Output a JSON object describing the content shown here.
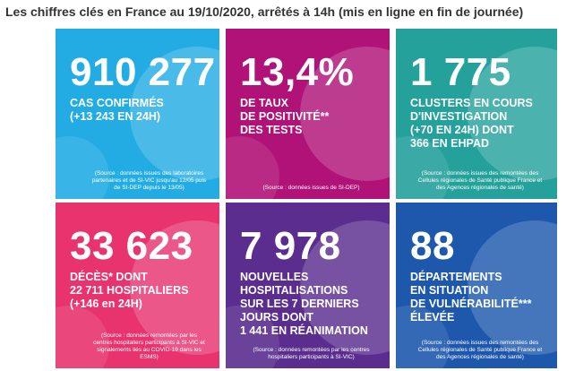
{
  "header": {
    "title": "Les chiffres clés en France au 19/10/2020, arrêtés à 14h (mis en ligne en fin de journée)"
  },
  "tiles": [
    {
      "number": "910 277",
      "lines": [
        "CAS CONFIRMÉS",
        "(+13 243 EN 24H)"
      ],
      "source": "(Source : données issues des laboratoires partenaires et de SI-VIC jusqu'au 12/05 puis de SI-DEP depuis le 13/05)"
    },
    {
      "number": "13,4%",
      "lines": [
        "DE TAUX",
        "DE POSITIVITÉ**",
        "DES TESTS"
      ],
      "source": "(Source : données issues de SI-DEP)"
    },
    {
      "number": "1 775",
      "lines": [
        "CLUSTERS EN COURS",
        "D'INVESTIGATION",
        "(+70 EN 24H) DONT",
        "366 EN EHPAD"
      ],
      "source": "(Source : données issues des remontées des Cellules régionales de Santé publique France et des Agences régionales de santé)"
    },
    {
      "number": "33 623",
      "lines": [
        "DÉCÈS* DONT",
        "22 711 HOSPITALIERS",
        "(+146 en 24H)"
      ],
      "source": "(Source : données remontées par les centres hospitaliers participants à SI-VIC et signalements liés au COVID-19 dans les ESMS)"
    },
    {
      "number": "7 978",
      "lines": [
        "NOUVELLES",
        "HOSPITALISATIONS",
        "SUR LES 7 DERNIERS",
        "JOURS DONT",
        "1 441 EN RÉANIMATION"
      ],
      "source": "(Source : données remontées par les centres hospitaliers participants à SI-VIC)"
    },
    {
      "number": "88",
      "lines": [
        "DÉPARTEMENTS",
        "EN SITUATION",
        "DE VULNÉRABILITÉ***",
        "ÉLEVÉE"
      ],
      "source": "(Source : données issues des remontées des Cellules régionales de Santé publique France et des Agences régionales de santé)"
    }
  ]
}
